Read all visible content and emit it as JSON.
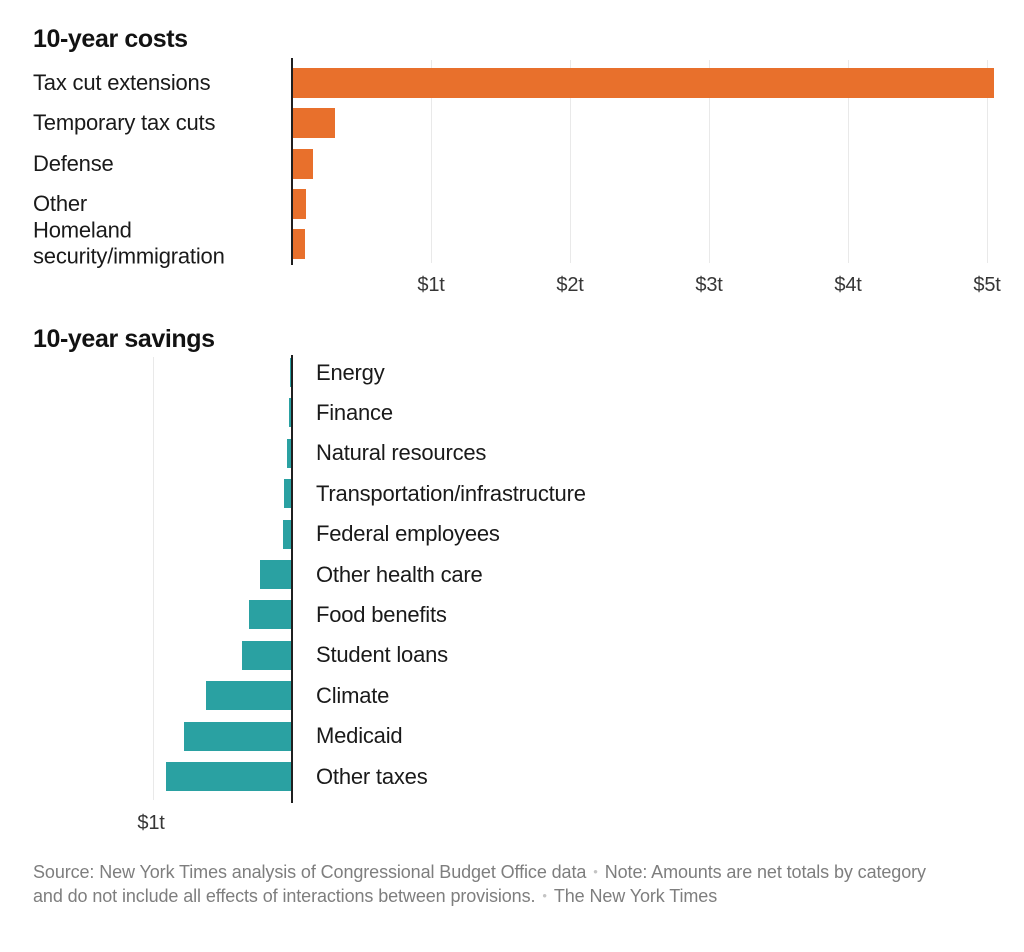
{
  "colors": {
    "background": "#ffffff",
    "costs_bar": "#E8702C",
    "savings_bar": "#2AA1A2",
    "axis_line": "#1f1f1f",
    "gridline": "#e9e9e9",
    "label_text": "#1a1a1a",
    "tick_text": "#363636",
    "footer_text": "#7e7e7e",
    "footer_bullet": "#c4c4c4"
  },
  "chart_data": [
    {
      "type": "bar",
      "orientation": "horizontal",
      "direction": "right",
      "title": "10-year costs",
      "value_unit": "trillion USD",
      "categories": [
        "Tax cut extensions",
        "Temporary tax cuts",
        "Defense",
        "Other",
        "Homeland security/immigration"
      ],
      "values": [
        5.04,
        0.3,
        0.145,
        0.095,
        0.085
      ],
      "x_ticks": [
        {
          "label": "$1t",
          "value": 1
        },
        {
          "label": "$2t",
          "value": 2
        },
        {
          "label": "$3t",
          "value": 3
        },
        {
          "label": "$4t",
          "value": 4
        },
        {
          "label": "$5t",
          "value": 5
        }
      ],
      "xlim": [
        0,
        5.1
      ],
      "grid": true,
      "legend": "none",
      "bar_color": "#E8702C"
    },
    {
      "type": "bar",
      "orientation": "horizontal",
      "direction": "left",
      "title": "10-year savings",
      "value_unit": "trillion USD",
      "categories": [
        "Energy",
        "Finance",
        "Natural resources",
        "Transportation/infrastructure",
        "Federal employees",
        "Other health care",
        "Food benefits",
        "Student loans",
        "Climate",
        "Medicaid",
        "Other taxes"
      ],
      "values": [
        0.01,
        0.015,
        0.03,
        0.05,
        0.06,
        0.22,
        0.3,
        0.35,
        0.61,
        0.77,
        0.9
      ],
      "x_ticks": [
        {
          "label": "$1t",
          "value": 1
        }
      ],
      "xlim": [
        0,
        1.0
      ],
      "grid": true,
      "legend": "none",
      "bar_color": "#2AA1A2"
    }
  ],
  "footer": {
    "source": "Source: New York Times analysis of Congressional Budget Office data",
    "note": "Note: Amounts are net totals by category and do not include all effects of interactions between provisions.",
    "credit": "The New York Times",
    "separator": "•"
  }
}
